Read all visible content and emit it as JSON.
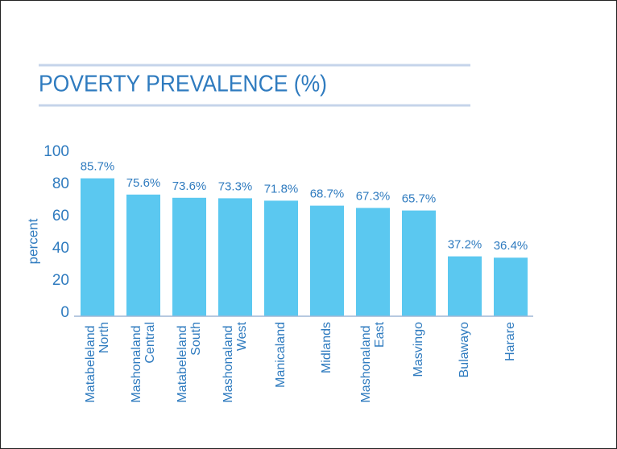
{
  "chart_data": {
    "type": "bar",
    "title": "POVERTY PREVALENCE (%)",
    "y_label": "percent",
    "categories": [
      "Matabeleland North",
      "Mashonaland Central",
      "Matabeleland South",
      "Mashonaland West",
      "Manicaland",
      "Midlands",
      "Mashonaland East",
      "Masvingo",
      "Bulawayo",
      "Harare"
    ],
    "values": [
      85.7,
      75.6,
      73.6,
      73.3,
      71.8,
      68.7,
      67.3,
      65.7,
      37.2,
      36.4
    ],
    "value_labels": [
      "85.7%",
      "75.6%",
      "73.6%",
      "73.3%",
      "71.8%",
      "68.7%",
      "67.3%",
      "65.7%",
      "37.2%",
      "36.4%"
    ],
    "color": "#5bc8f0",
    "ylim": [
      0,
      100
    ],
    "yticks": [
      0,
      20,
      40,
      60,
      80,
      100
    ],
    "grid": false
  }
}
